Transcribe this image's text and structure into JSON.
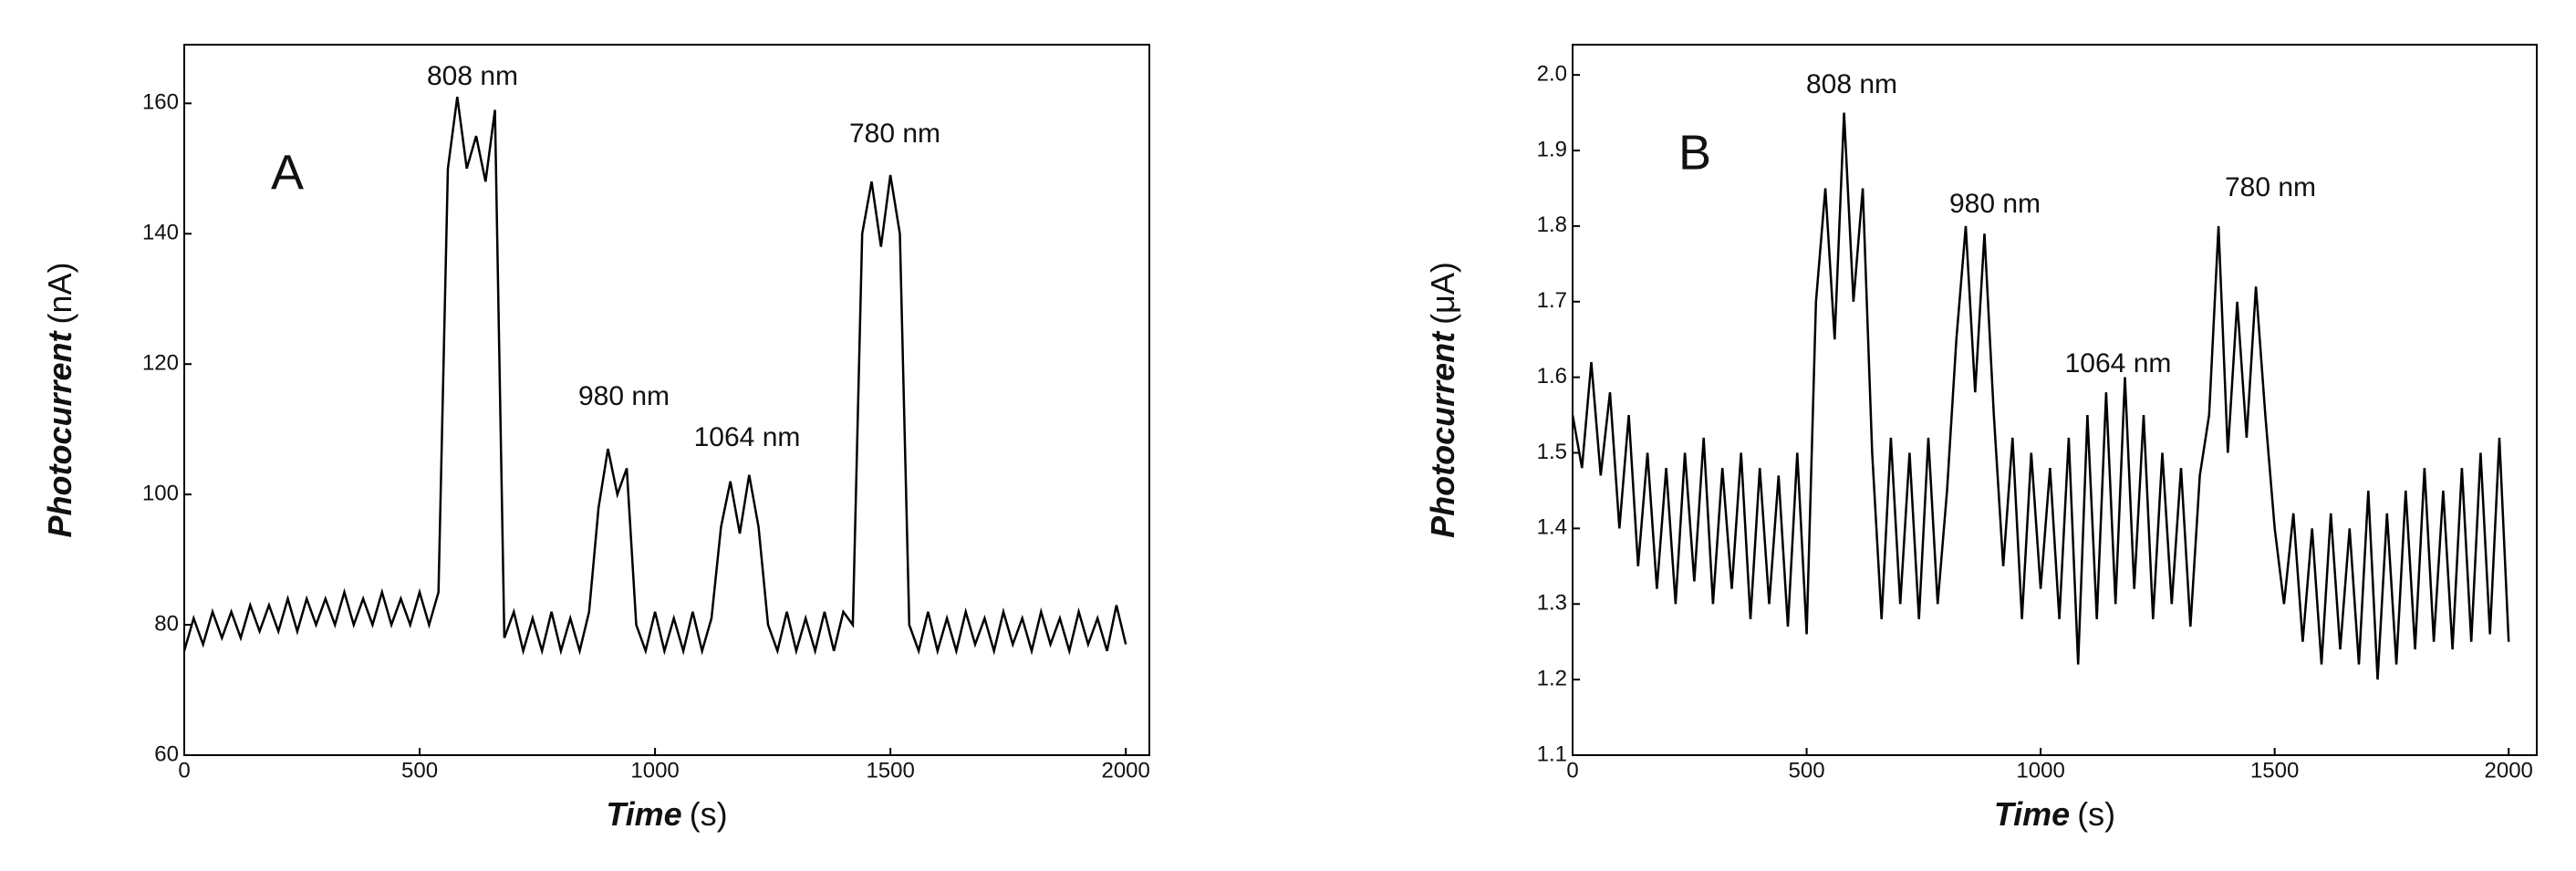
{
  "chart_data": [
    {
      "type": "line",
      "panel": "A",
      "x_label": "Time",
      "x_unit": "(s)",
      "y_label": "Photocurrent",
      "y_unit": "(nA)",
      "xlim": [
        0,
        2050
      ],
      "xticks": [
        0,
        500,
        1000,
        1500,
        2000
      ],
      "ylim": [
        60,
        169
      ],
      "yticks": [
        60,
        80,
        100,
        120,
        140,
        160
      ],
      "grid": false,
      "annotations": [
        "808 nm",
        "980 nm",
        "1064 nm",
        "780 nm"
      ],
      "color": "#000000",
      "x": [
        0,
        20,
        40,
        60,
        80,
        100,
        120,
        140,
        160,
        180,
        200,
        220,
        240,
        260,
        280,
        300,
        320,
        340,
        360,
        380,
        400,
        420,
        440,
        460,
        480,
        500,
        520,
        540,
        560,
        580,
        600,
        620,
        640,
        660,
        680,
        700,
        720,
        740,
        760,
        780,
        800,
        820,
        840,
        860,
        880,
        900,
        920,
        940,
        960,
        980,
        1000,
        1020,
        1040,
        1060,
        1080,
        1100,
        1120,
        1140,
        1160,
        1180,
        1200,
        1220,
        1240,
        1260,
        1280,
        1300,
        1320,
        1340,
        1360,
        1380,
        1400,
        1420,
        1440,
        1460,
        1480,
        1500,
        1520,
        1540,
        1560,
        1580,
        1600,
        1620,
        1640,
        1660,
        1680,
        1700,
        1720,
        1740,
        1760,
        1780,
        1800,
        1820,
        1840,
        1860,
        1880,
        1900,
        1920,
        1940,
        1960,
        1980,
        2000
      ],
      "values": [
        76,
        81,
        77,
        82,
        78,
        82,
        78,
        83,
        79,
        83,
        79,
        84,
        79,
        84,
        80,
        84,
        80,
        85,
        80,
        84,
        80,
        85,
        80,
        84,
        80,
        85,
        80,
        85,
        150,
        161,
        150,
        155,
        148,
        159,
        78,
        82,
        76,
        81,
        76,
        82,
        76,
        81,
        76,
        82,
        98,
        107,
        100,
        104,
        80,
        76,
        82,
        76,
        81,
        76,
        82,
        76,
        81,
        95,
        102,
        94,
        103,
        95,
        80,
        76,
        82,
        76,
        81,
        76,
        82,
        76,
        82,
        80,
        140,
        148,
        138,
        149,
        140,
        80,
        76,
        82,
        76,
        81,
        76,
        82,
        77,
        81,
        76,
        82,
        77,
        81,
        76,
        82,
        77,
        81,
        76,
        82,
        77,
        81,
        76,
        83,
        77
      ]
    },
    {
      "type": "line",
      "panel": "B",
      "x_label": "Time",
      "x_unit": "(s)",
      "y_label": "Photocurrent",
      "y_unit": "(μA)",
      "xlim": [
        0,
        2060
      ],
      "xticks": [
        0,
        500,
        1000,
        1500,
        2000
      ],
      "ylim": [
        1.1,
        2.04
      ],
      "yticks": [
        {
          "value": 1.1,
          "label": "1.1"
        },
        {
          "value": 1.2,
          "label": "1.2"
        },
        {
          "value": 1.3,
          "label": "1.3"
        },
        {
          "value": 1.4,
          "label": "1.4"
        },
        {
          "value": 1.5,
          "label": "1.5"
        },
        {
          "value": 1.6,
          "label": "1.6"
        },
        {
          "value": 1.7,
          "label": "1.7"
        },
        {
          "value": 1.8,
          "label": "1.8"
        },
        {
          "value": 1.9,
          "label": "1.9"
        },
        {
          "value": 2.0,
          "label": "2.0"
        }
      ],
      "grid": false,
      "annotations": [
        "808 nm",
        "980 nm",
        "1064 nm",
        "780 nm"
      ],
      "color": "#000000",
      "x": [
        0,
        20,
        40,
        60,
        80,
        100,
        120,
        140,
        160,
        180,
        200,
        220,
        240,
        260,
        280,
        300,
        320,
        340,
        360,
        380,
        400,
        420,
        440,
        460,
        480,
        500,
        520,
        540,
        560,
        580,
        600,
        620,
        640,
        660,
        680,
        700,
        720,
        740,
        760,
        780,
        800,
        820,
        840,
        860,
        880,
        900,
        920,
        940,
        960,
        980,
        1000,
        1020,
        1040,
        1060,
        1080,
        1100,
        1120,
        1140,
        1160,
        1180,
        1200,
        1220,
        1240,
        1260,
        1280,
        1300,
        1320,
        1340,
        1360,
        1380,
        1400,
        1420,
        1440,
        1460,
        1480,
        1500,
        1520,
        1540,
        1560,
        1580,
        1600,
        1620,
        1640,
        1660,
        1680,
        1700,
        1720,
        1740,
        1760,
        1780,
        1800,
        1820,
        1840,
        1860,
        1880,
        1900,
        1920,
        1940,
        1960,
        1980,
        2000
      ],
      "values": [
        1.55,
        1.48,
        1.62,
        1.47,
        1.58,
        1.4,
        1.55,
        1.35,
        1.5,
        1.32,
        1.48,
        1.3,
        1.5,
        1.33,
        1.52,
        1.3,
        1.48,
        1.32,
        1.5,
        1.28,
        1.48,
        1.3,
        1.47,
        1.27,
        1.5,
        1.26,
        1.7,
        1.85,
        1.65,
        1.95,
        1.7,
        1.85,
        1.5,
        1.28,
        1.52,
        1.3,
        1.5,
        1.28,
        1.52,
        1.3,
        1.45,
        1.65,
        1.8,
        1.58,
        1.79,
        1.55,
        1.35,
        1.52,
        1.28,
        1.5,
        1.32,
        1.48,
        1.28,
        1.52,
        1.22,
        1.55,
        1.28,
        1.58,
        1.3,
        1.6,
        1.32,
        1.55,
        1.28,
        1.5,
        1.3,
        1.48,
        1.27,
        1.47,
        1.55,
        1.8,
        1.5,
        1.7,
        1.52,
        1.72,
        1.55,
        1.4,
        1.3,
        1.42,
        1.25,
        1.4,
        1.22,
        1.42,
        1.24,
        1.4,
        1.22,
        1.45,
        1.2,
        1.42,
        1.22,
        1.45,
        1.24,
        1.48,
        1.25,
        1.45,
        1.24,
        1.48,
        1.25,
        1.5,
        1.26,
        1.52,
        1.25
      ]
    }
  ]
}
